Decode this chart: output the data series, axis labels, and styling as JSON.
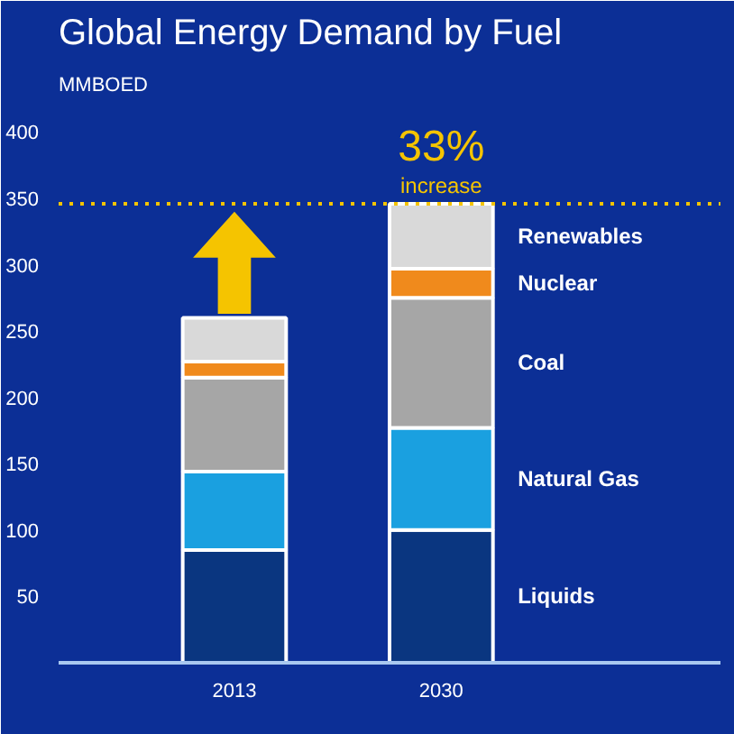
{
  "chart_data": {
    "type": "bar",
    "title": "Global Energy Demand by Fuel",
    "subtitle": "MMBOED",
    "categories": [
      "2013",
      "2030"
    ],
    "stacked": true,
    "series": [
      {
        "name": "Liquids",
        "color": "#0a3680",
        "values": [
          85,
          100
        ]
      },
      {
        "name": "Natural Gas",
        "color": "#1aa0e0",
        "values": [
          59,
          77
        ]
      },
      {
        "name": "Coal",
        "color": "#a6a6a6",
        "values": [
          71,
          98
        ]
      },
      {
        "name": "Nuclear",
        "color": "#f08a1c",
        "values": [
          12,
          22
        ]
      },
      {
        "name": "Renewables",
        "color": "#d9d9d9",
        "values": [
          33,
          49
        ]
      }
    ],
    "ylim": [
      0,
      420
    ],
    "yticks": [
      50,
      100,
      150,
      200,
      250,
      300,
      350,
      400
    ],
    "ref_lines": [
      {
        "axis": "y",
        "value": 346,
        "color": "#f5c400",
        "line_style": "dotted"
      }
    ],
    "annotations": [
      "33%",
      "increase"
    ],
    "grid": false
  }
}
